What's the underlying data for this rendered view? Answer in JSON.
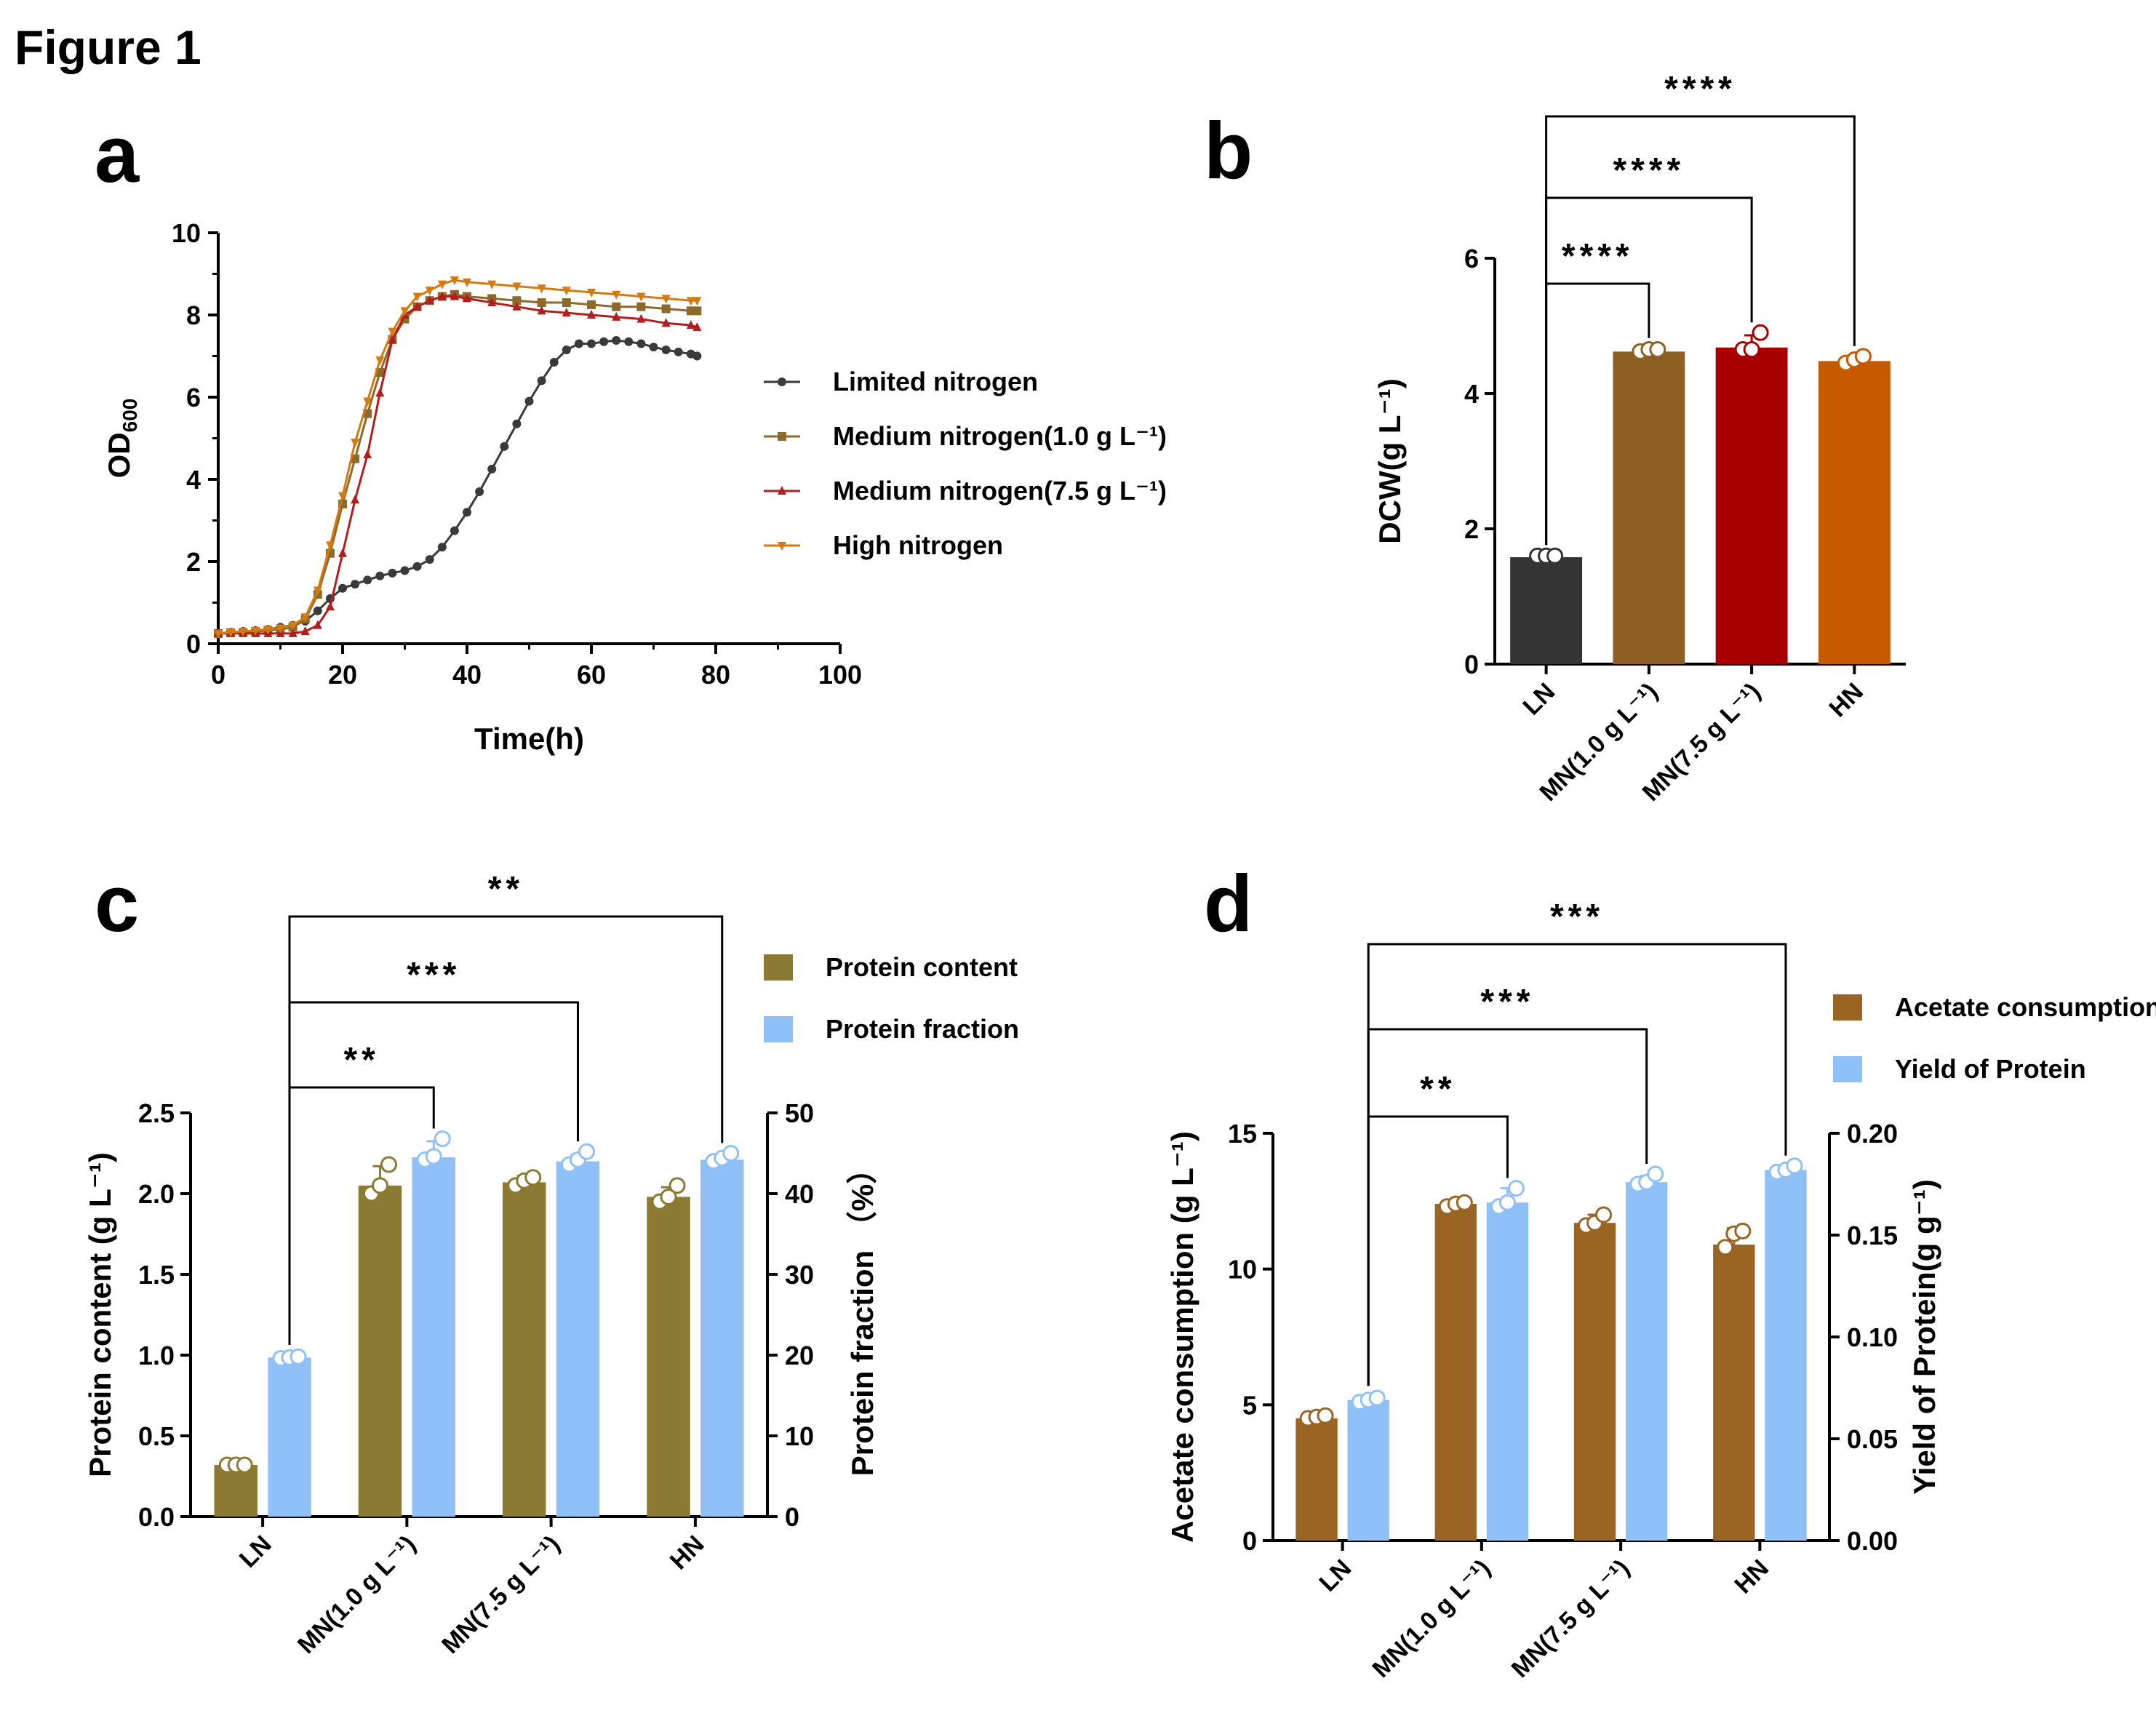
{
  "figure_title": "Figure 1",
  "colors": {
    "limited": "#3a3a3a",
    "medium1": "#8c6a2c",
    "medium75": "#b21e1e",
    "high": "#d47a10",
    "bar_ln": "#333333",
    "bar_mn1": "#8e5f23",
    "bar_mn75": "#a80000",
    "bar_hn": "#c55a00",
    "protein_content": "#8b7a32",
    "protein_fraction": "#8fc1f8",
    "acetate": "#9a6523",
    "yield": "#8fc1f8"
  },
  "chart_data": [
    {
      "id": "a",
      "type": "line",
      "panel_label": "a",
      "xlabel": "Time(h)",
      "ylabel": "OD",
      "ylabel_sub": "600",
      "xlim": [
        0,
        100
      ],
      "ylim": [
        0,
        10
      ],
      "xticks": [
        "0",
        "20",
        "40",
        "60",
        "80",
        "100"
      ],
      "yticks": [
        "0",
        "2",
        "4",
        "6",
        "8",
        "10"
      ],
      "legend_position": "right",
      "series": [
        {
          "name": "Limited nitrogen",
          "marker": "circle",
          "color": "#3a3a3a",
          "x": [
            0,
            2,
            4,
            6,
            8,
            10,
            12,
            14,
            16,
            18,
            20,
            22,
            24,
            26,
            28,
            30,
            32,
            34,
            36,
            38,
            40,
            42,
            44,
            46,
            48,
            50,
            52,
            54,
            56,
            58,
            60,
            62,
            64,
            66,
            68,
            70,
            72,
            74,
            76,
            77
          ],
          "y": [
            0.25,
            0.28,
            0.3,
            0.32,
            0.35,
            0.4,
            0.45,
            0.55,
            0.8,
            1.1,
            1.35,
            1.45,
            1.55,
            1.65,
            1.72,
            1.78,
            1.88,
            2.05,
            2.35,
            2.75,
            3.2,
            3.7,
            4.25,
            4.8,
            5.35,
            5.9,
            6.4,
            6.85,
            7.15,
            7.3,
            7.3,
            7.35,
            7.38,
            7.35,
            7.3,
            7.22,
            7.15,
            7.1,
            7.05,
            7.0
          ]
        },
        {
          "name": "Medium nitrogen(1.0 g L⁻¹)",
          "marker": "square",
          "color": "#8c6a2c",
          "x": [
            0,
            2,
            4,
            6,
            8,
            10,
            12,
            14,
            16,
            18,
            20,
            22,
            24,
            26,
            28,
            30,
            32,
            34,
            36,
            38,
            40,
            44,
            48,
            52,
            56,
            60,
            64,
            68,
            72,
            76,
            77
          ],
          "y": [
            0.25,
            0.27,
            0.28,
            0.3,
            0.32,
            0.35,
            0.4,
            0.6,
            1.2,
            2.2,
            3.4,
            4.5,
            5.6,
            6.6,
            7.4,
            7.9,
            8.2,
            8.35,
            8.45,
            8.5,
            8.45,
            8.4,
            8.35,
            8.3,
            8.3,
            8.25,
            8.2,
            8.2,
            8.15,
            8.1,
            8.1
          ]
        },
        {
          "name": "Medium nitrogen(7.5 g L⁻¹)",
          "marker": "triangle",
          "color": "#b21e1e",
          "x": [
            0,
            2,
            4,
            6,
            8,
            10,
            12,
            14,
            16,
            18,
            20,
            22,
            24,
            26,
            28,
            30,
            32,
            34,
            36,
            38,
            40,
            44,
            48,
            52,
            56,
            60,
            64,
            68,
            72,
            76,
            77
          ],
          "y": [
            0.25,
            0.25,
            0.25,
            0.25,
            0.25,
            0.25,
            0.25,
            0.3,
            0.45,
            0.9,
            2.2,
            3.5,
            4.6,
            6.1,
            7.4,
            8.0,
            8.2,
            8.35,
            8.45,
            8.45,
            8.4,
            8.3,
            8.2,
            8.1,
            8.05,
            8.0,
            7.95,
            7.9,
            7.8,
            7.75,
            7.7
          ]
        },
        {
          "name": "High nitrogen",
          "marker": "inv-triangle",
          "color": "#d47a10",
          "x": [
            0,
            2,
            4,
            6,
            8,
            10,
            12,
            14,
            16,
            18,
            20,
            22,
            24,
            26,
            28,
            30,
            32,
            34,
            36,
            38,
            40,
            44,
            48,
            52,
            56,
            60,
            64,
            68,
            72,
            76,
            77
          ],
          "y": [
            0.25,
            0.28,
            0.3,
            0.32,
            0.35,
            0.38,
            0.45,
            0.65,
            1.3,
            2.4,
            3.6,
            4.9,
            5.9,
            6.9,
            7.6,
            8.1,
            8.45,
            8.6,
            8.75,
            8.85,
            8.8,
            8.75,
            8.7,
            8.65,
            8.6,
            8.55,
            8.5,
            8.45,
            8.4,
            8.35,
            8.35
          ]
        }
      ]
    },
    {
      "id": "b",
      "type": "bar",
      "panel_label": "b",
      "ylabel": "DCW(g L⁻¹)",
      "ylim": [
        0,
        6
      ],
      "yticks": [
        "0",
        "2",
        "4",
        "6"
      ],
      "categories": [
        "LN",
        "MN(1.0 g L⁻¹)",
        "MN(7.5 g L⁻¹)",
        "HN"
      ],
      "values": [
        1.58,
        4.62,
        4.68,
        4.48
      ],
      "errors": [
        0.03,
        0.05,
        0.18,
        0.05
      ],
      "points": [
        [
          1.6,
          1.6,
          1.6
        ],
        [
          4.62,
          4.65,
          4.65
        ],
        [
          4.65,
          4.65,
          4.9
        ],
        [
          4.45,
          4.5,
          4.55
        ]
      ],
      "significance": [
        {
          "from": 0,
          "to": 1,
          "label": "****"
        },
        {
          "from": 0,
          "to": 2,
          "label": "****"
        },
        {
          "from": 0,
          "to": 3,
          "label": "****"
        }
      ]
    },
    {
      "id": "c",
      "type": "bar",
      "panel_label": "c",
      "ylabel_left": "Protein content (g L⁻¹)",
      "ylabel_right": "Protein fraction （%）",
      "ylim_left": [
        0,
        2.5
      ],
      "ylim_right": [
        0,
        50
      ],
      "yticks_left": [
        "0.0",
        "0.5",
        "1.0",
        "1.5",
        "2.0",
        "2.5"
      ],
      "yticks_right": [
        "0",
        "10",
        "20",
        "30",
        "40",
        "50"
      ],
      "categories": [
        "LN",
        "MN(1.0 g L⁻¹)",
        "MN(7.5 g L⁻¹)",
        "HN"
      ],
      "legend_position": "top-right",
      "series": [
        {
          "name": "Protein content",
          "axis": "left",
          "values": [
            0.32,
            2.05,
            2.07,
            1.98
          ],
          "errors": [
            0.02,
            0.12,
            0.04,
            0.06
          ],
          "points": [
            [
              0.32,
              0.32,
              0.32
            ],
            [
              2.0,
              2.05,
              2.18
            ],
            [
              2.05,
              2.08,
              2.1
            ],
            [
              1.95,
              1.98,
              2.05
            ]
          ]
        },
        {
          "name": "Protein fraction",
          "axis": "right",
          "values": [
            19.7,
            44.5,
            44.0,
            44.2
          ],
          "errors": [
            0.3,
            2.0,
            0.8,
            0.6
          ],
          "points": [
            [
              19.6,
              19.7,
              19.8
            ],
            [
              44.2,
              44.6,
              46.8
            ],
            [
              43.6,
              44.2,
              45.2
            ],
            [
              44.0,
              44.4,
              45.0
            ]
          ]
        }
      ],
      "significance": [
        {
          "from": 0,
          "to": 1,
          "label": "**"
        },
        {
          "from": 0,
          "to": 2,
          "label": "***"
        },
        {
          "from": 0,
          "to": 3,
          "label": "**"
        }
      ]
    },
    {
      "id": "d",
      "type": "bar",
      "panel_label": "d",
      "ylabel_left": "Acetate consumption (g L⁻¹)",
      "ylabel_right": "Yield of Protein(g g⁻¹)",
      "ylim_left": [
        0,
        15
      ],
      "ylim_right": [
        0,
        0.2
      ],
      "yticks_left": [
        "0",
        "5",
        "10",
        "15"
      ],
      "yticks_right": [
        "0.00",
        "0.05",
        "0.10",
        "0.15",
        "0.20"
      ],
      "categories": [
        "LN",
        "MN(1.0 g L⁻¹)",
        "MN(7.5 g L⁻¹)",
        "HN"
      ],
      "legend_position": "top-right",
      "series": [
        {
          "name": "Acetate consumption",
          "axis": "left",
          "values": [
            4.5,
            12.4,
            11.7,
            10.9
          ],
          "errors": [
            0.1,
            0.15,
            0.3,
            0.6
          ],
          "points": [
            [
              4.5,
              4.55,
              4.6
            ],
            [
              12.3,
              12.4,
              12.45
            ],
            [
              11.6,
              11.7,
              12.0
            ],
            [
              10.8,
              11.3,
              11.4
            ]
          ]
        },
        {
          "name": "Yield of Protein",
          "axis": "right",
          "values": [
            0.069,
            0.166,
            0.176,
            0.182
          ],
          "errors": [
            0.002,
            0.007,
            0.003,
            0.002
          ],
          "points": [
            [
              0.068,
              0.069,
              0.07
            ],
            [
              0.164,
              0.166,
              0.173
            ],
            [
              0.175,
              0.176,
              0.18
            ],
            [
              0.181,
              0.182,
              0.184
            ]
          ]
        }
      ],
      "significance": [
        {
          "from": 0,
          "to": 1,
          "label": "**"
        },
        {
          "from": 0,
          "to": 2,
          "label": "***"
        },
        {
          "from": 0,
          "to": 3,
          "label": "***"
        }
      ]
    }
  ]
}
